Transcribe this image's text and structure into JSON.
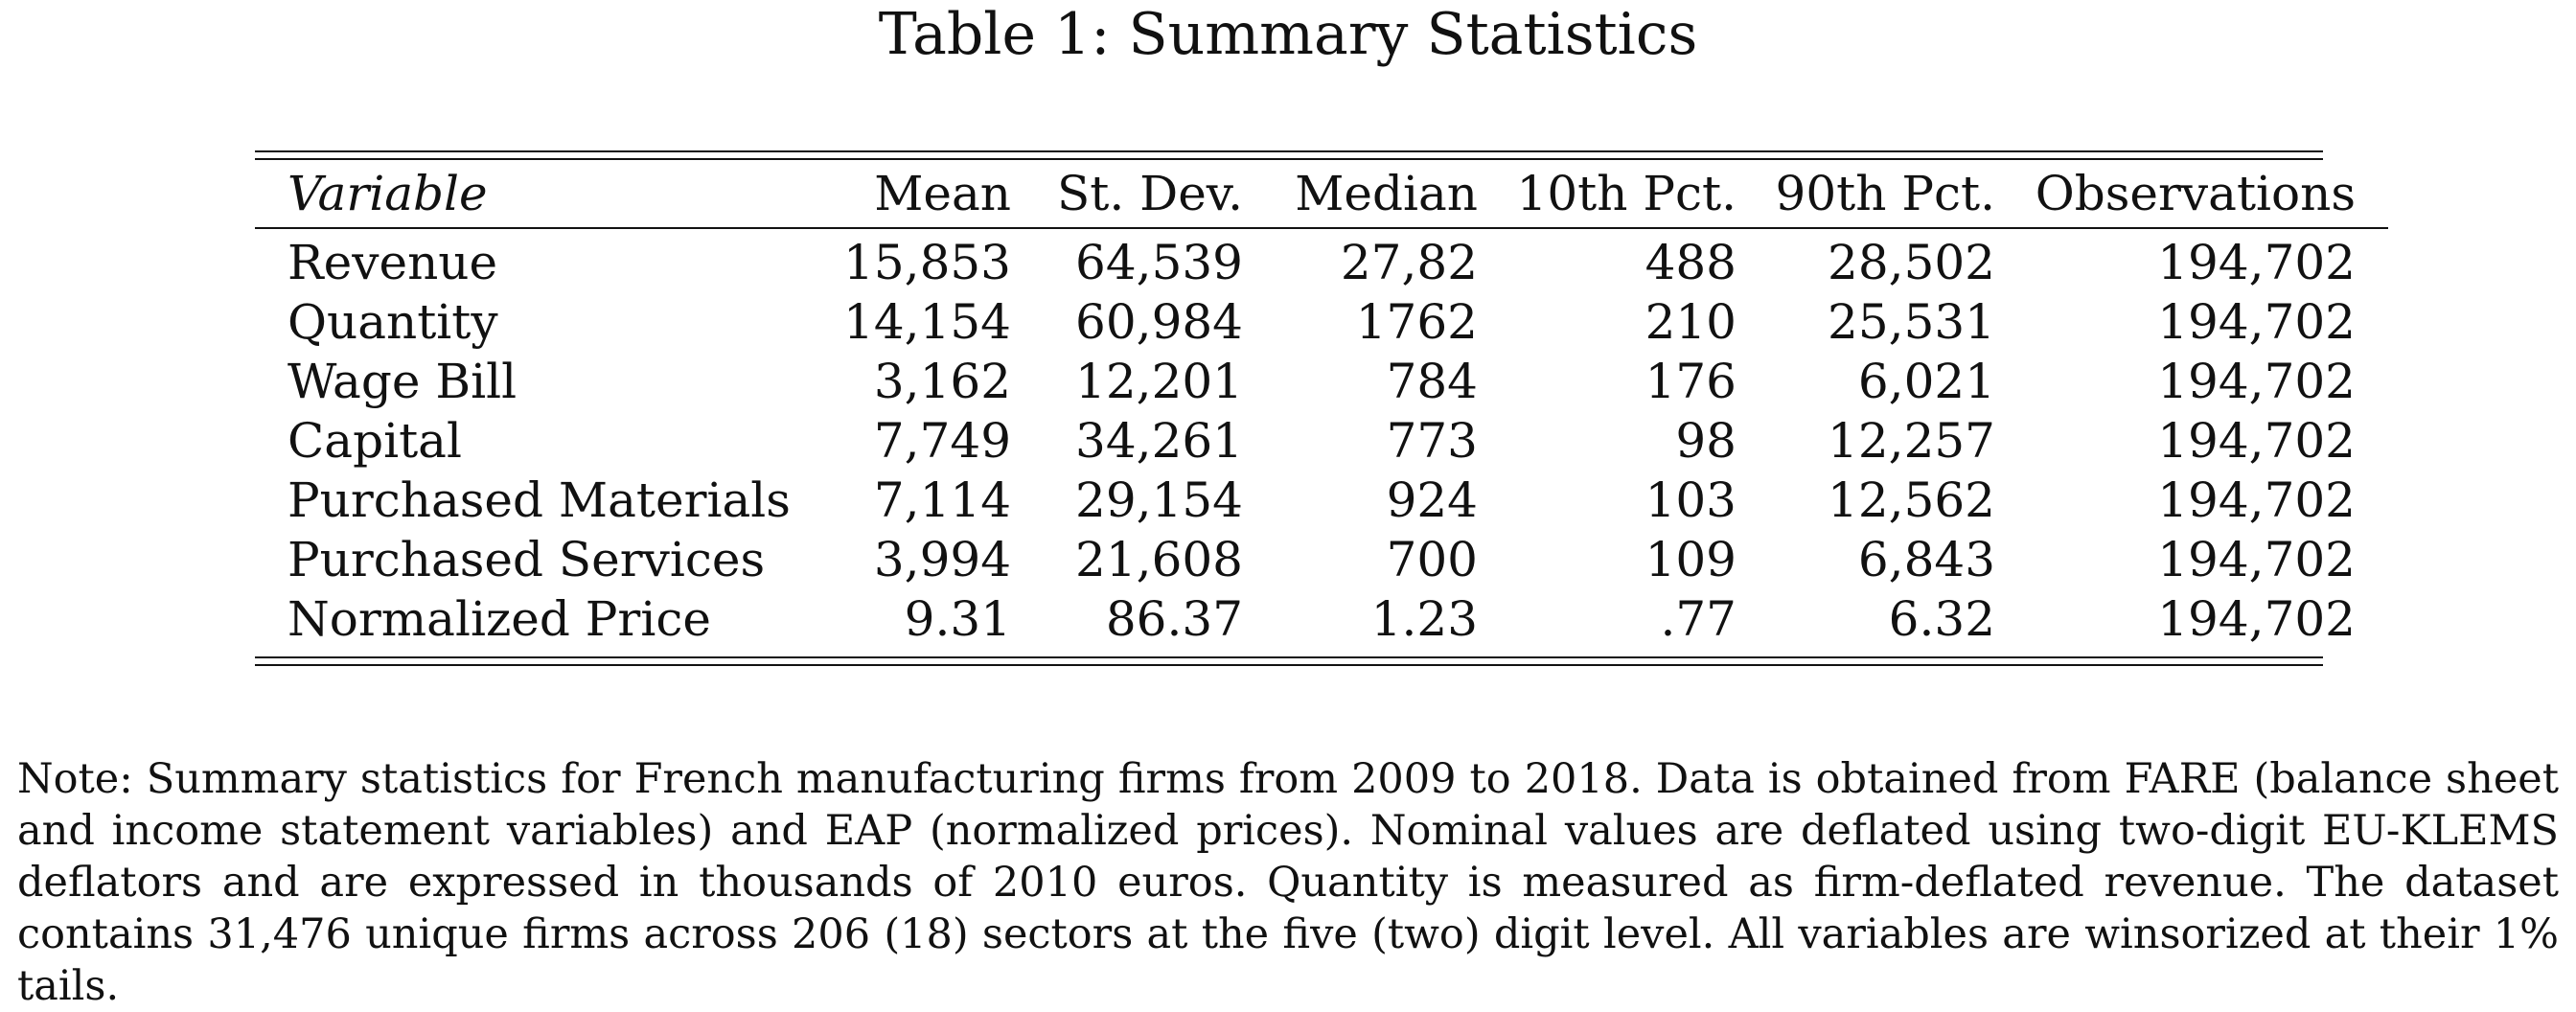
{
  "title": "Table 1: Summary Statistics",
  "table": {
    "headers": [
      "Variable",
      "Mean",
      "St. Dev.",
      "Median",
      "10th Pct.",
      "90th Pct.",
      "Observations"
    ],
    "rows": [
      [
        "Revenue",
        "15,853",
        "64,539",
        "27,82",
        "488",
        "28,502",
        "194,702"
      ],
      [
        "Quantity",
        "14,154",
        "60,984",
        "1762",
        "210",
        "25,531",
        "194,702"
      ],
      [
        "Wage Bill",
        "3,162",
        "12,201",
        "784",
        "176",
        "6,021",
        "194,702"
      ],
      [
        "Capital",
        "7,749",
        "34,261",
        "773",
        "98",
        "12,257",
        "194,702"
      ],
      [
        "Purchased Materials",
        "7,114",
        "29,154",
        "924",
        "103",
        "12,562",
        "194,702"
      ],
      [
        "Purchased Services",
        "3,994",
        "21,608",
        "700",
        "109",
        "6,843",
        "194,702"
      ],
      [
        "Normalized Price",
        "9.31",
        "86.37",
        "1.23",
        ".77",
        "6.32",
        "194,702"
      ]
    ]
  },
  "note": "Note: Summary statistics for French manufacturing firms from 2009 to 2018. Data is obtained from FARE (balance sheet and income statement variables) and EAP (normalized prices). Nominal values are deflated using two-digit EU-KLEMS deflators and are expressed in thousands of 2010 euros. Quantity is measured as firm-deflated revenue. The dataset contains 31,476 unique firms across 206 (18) sectors at the five (two) digit level. All variables are winsorized at their 1% tails."
}
